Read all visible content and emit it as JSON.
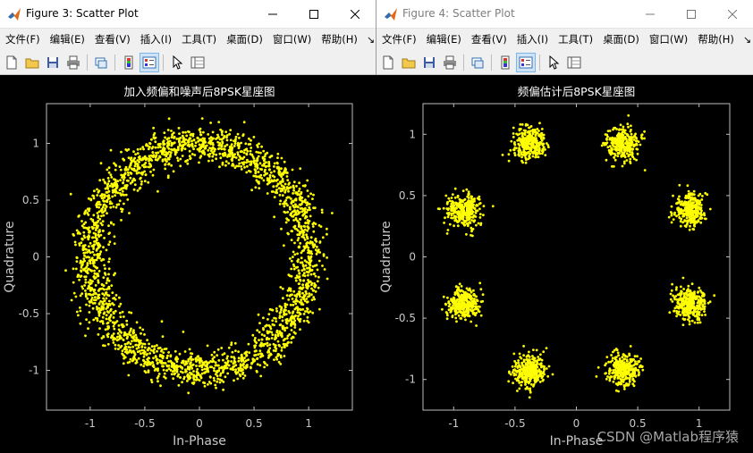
{
  "windows": [
    {
      "title": "Figure 3: Scatter Plot",
      "active": true,
      "menu": [
        "文件(F)",
        "编辑(E)",
        "查看(V)",
        "插入(I)",
        "工具(T)",
        "桌面(D)",
        "窗口(W)",
        "帮助(H)"
      ],
      "menu_overflow": "↘",
      "toolbar": [
        "new-figure-icon",
        "open-folder-icon",
        "save-icon",
        "print-icon",
        "link-icon",
        "insert-colorbar-icon",
        "insert-legend-icon",
        "pointer-icon",
        "property-inspector-icon"
      ],
      "chart_data": {
        "type": "scatter",
        "title": "加入频偏和噪声后8PSK星座图",
        "xlabel": "In-Phase",
        "ylabel": "Quadrature",
        "xlim": [
          -1.4,
          1.4
        ],
        "ylim": [
          -1.35,
          1.35
        ],
        "xticks": [
          -1,
          -0.5,
          0,
          0.5,
          1
        ],
        "yticks": [
          -1,
          -0.5,
          0,
          0.5,
          1
        ],
        "tick_labels_x": [
          "-1",
          "-0.5",
          "0",
          "0.5",
          "1"
        ],
        "tick_labels_y": [
          "-1",
          "-0.5",
          "0",
          "0.5",
          "1"
        ],
        "grid": false,
        "marker_color": "#ffff00",
        "distribution": "ring",
        "ring_radius": 1.0,
        "ring_spread": 0.08,
        "point_count": 2600
      }
    },
    {
      "title": "Figure 4: Scatter Plot",
      "active": false,
      "menu": [
        "文件(F)",
        "编辑(E)",
        "查看(V)",
        "插入(I)",
        "工具(T)",
        "桌面(D)",
        "窗口(W)",
        "帮助(H)"
      ],
      "menu_overflow": "↘",
      "toolbar": [
        "new-figure-icon",
        "open-folder-icon",
        "save-icon",
        "print-icon",
        "link-icon",
        "insert-colorbar-icon",
        "insert-legend-icon",
        "pointer-icon",
        "property-inspector-icon"
      ],
      "chart_data": {
        "type": "scatter",
        "title": "频偏估计后8PSK星座图",
        "xlabel": "In-Phase",
        "ylabel": "Quadrature",
        "xlim": [
          -1.25,
          1.25
        ],
        "ylim": [
          -1.25,
          1.25
        ],
        "xticks": [
          -1,
          -0.5,
          0,
          0.5,
          1
        ],
        "yticks": [
          -1,
          -0.5,
          0,
          0.5,
          1
        ],
        "tick_labels_x": [
          "-1",
          "-0.5",
          "0",
          "0.5",
          "1"
        ],
        "tick_labels_y": [
          "-1",
          "-0.5",
          "0",
          "0.5",
          "1"
        ],
        "grid": false,
        "marker_color": "#ffff00",
        "distribution": "clusters",
        "cluster_centers": [
          [
            0.924,
            0.383
          ],
          [
            0.383,
            0.924
          ],
          [
            -0.383,
            0.924
          ],
          [
            -0.924,
            0.383
          ],
          [
            -0.924,
            -0.383
          ],
          [
            -0.383,
            -0.924
          ],
          [
            0.383,
            -0.924
          ],
          [
            0.924,
            -0.383
          ]
        ],
        "cluster_spread": 0.065,
        "points_per_cluster": 320
      }
    }
  ],
  "watermark": "CSDN @Matlab程序猿"
}
